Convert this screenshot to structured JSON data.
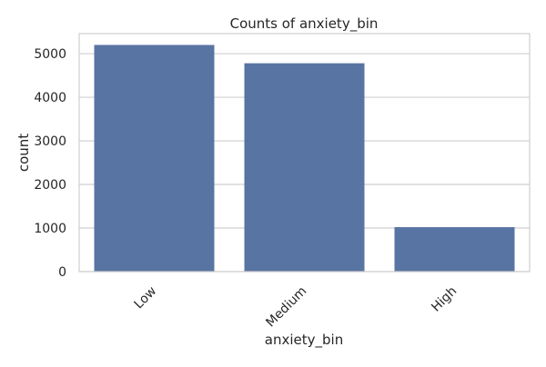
{
  "chart_data": {
    "type": "bar",
    "title": "Counts of anxiety_bin",
    "xlabel": "anxiety_bin",
    "ylabel": "count",
    "categories": [
      "Low",
      "Medium",
      "High"
    ],
    "values": [
      5200,
      4780,
      1020
    ],
    "ylim": [
      0,
      5460
    ],
    "yticks": [
      0,
      1000,
      2000,
      3000,
      4000,
      5000
    ],
    "grid": true,
    "bar_color": "#5874a3",
    "grid_color": "#cfcfcf",
    "frame_color": "#cfcfcf"
  }
}
